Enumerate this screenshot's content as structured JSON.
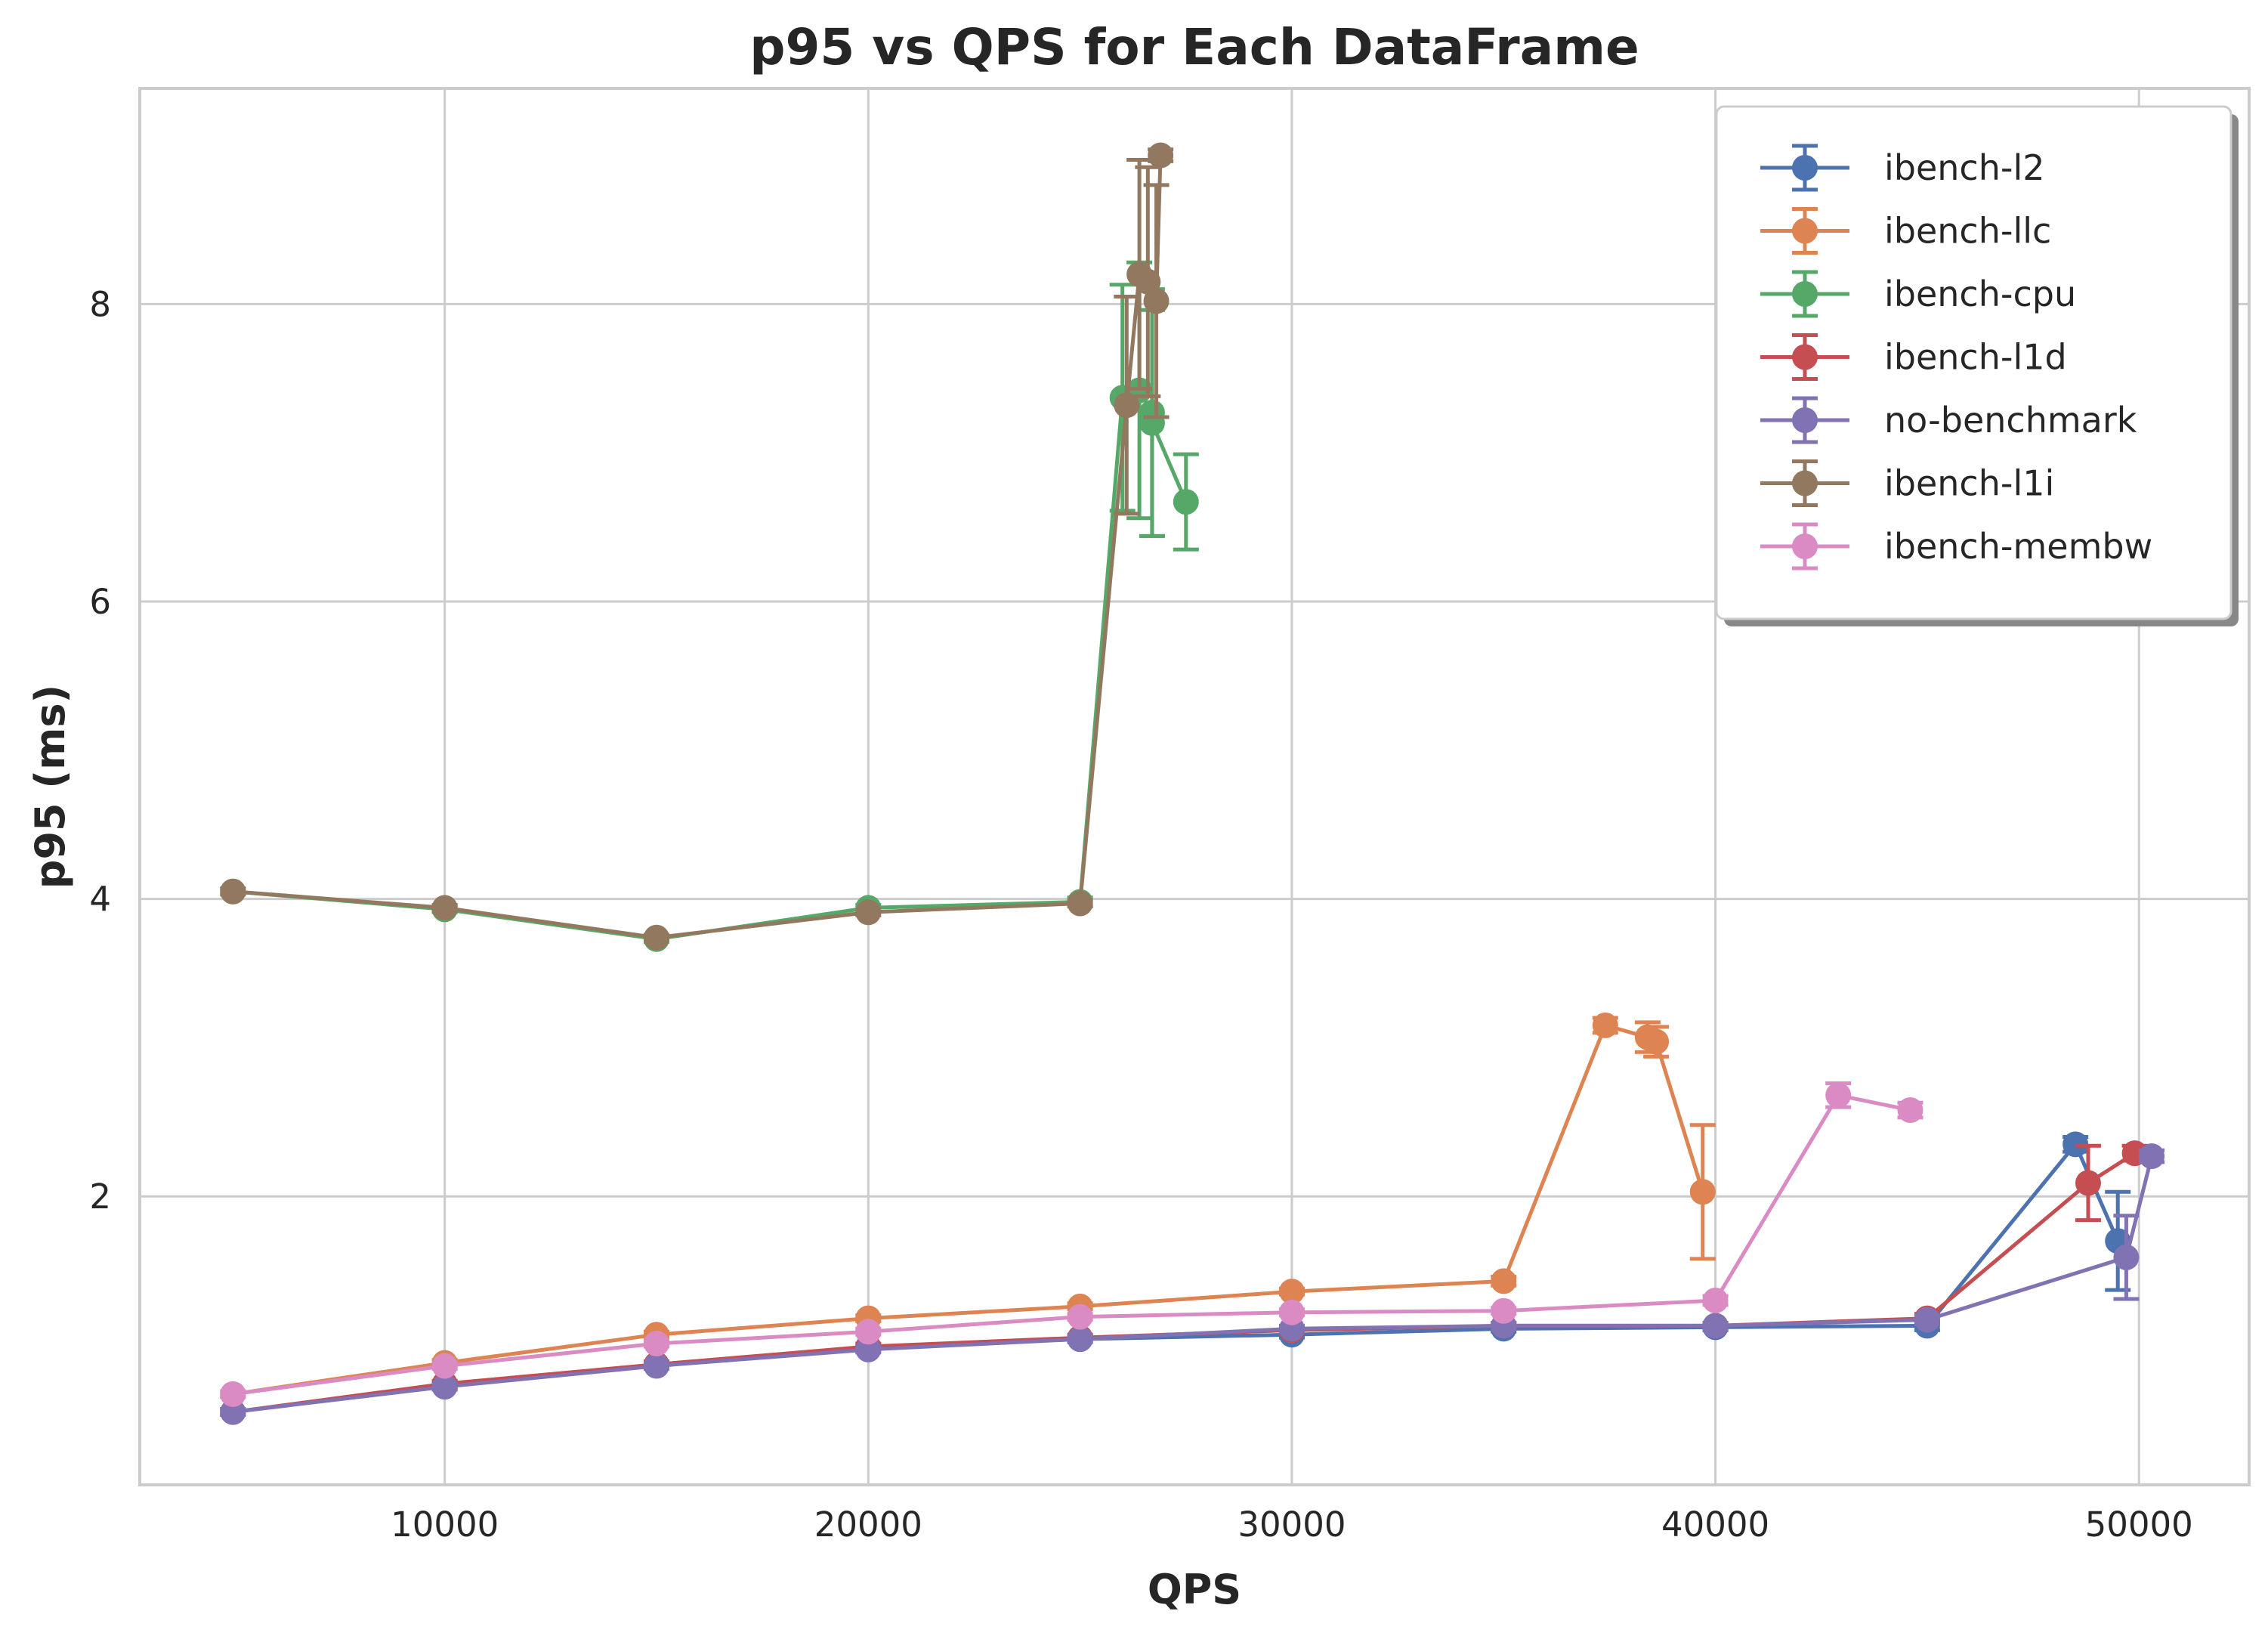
{
  "chart_data": {
    "type": "line",
    "title": "p95 vs QPS for Each DataFrame",
    "xlabel": "QPS",
    "ylabel": "p95 (ms)",
    "xlim": [
      2800,
      52600
    ],
    "ylim": [
      0.06,
      9.45
    ],
    "xticks": [
      10000,
      20000,
      30000,
      40000,
      50000
    ],
    "yticks": [
      2,
      4,
      6,
      8
    ],
    "grid": true,
    "legend_position": "upper right",
    "series": [
      {
        "name": "ibench-l2",
        "color": "#4c72b0",
        "points": [
          {
            "x": 5000,
            "y": 0.55,
            "err": 0.02
          },
          {
            "x": 10000,
            "y": 0.73,
            "err": 0.02
          },
          {
            "x": 15000,
            "y": 0.87,
            "err": 0.02
          },
          {
            "x": 20000,
            "y": 0.98,
            "err": 0.02
          },
          {
            "x": 25000,
            "y": 1.04,
            "err": 0.02
          },
          {
            "x": 30000,
            "y": 1.07,
            "err": 0.02
          },
          {
            "x": 35000,
            "y": 1.11,
            "err": 0.02
          },
          {
            "x": 40000,
            "y": 1.12,
            "err": 0.02
          },
          {
            "x": 45000,
            "y": 1.13,
            "err": 0.03
          },
          {
            "x": 48500,
            "y": 2.35,
            "err": 0.05
          },
          {
            "x": 49500,
            "y": 1.7,
            "err": 0.33
          }
        ]
      },
      {
        "name": "ibench-llc",
        "color": "#dd8452",
        "points": [
          {
            "x": 5000,
            "y": 0.67,
            "err": 0.02
          },
          {
            "x": 10000,
            "y": 0.88,
            "err": 0.02
          },
          {
            "x": 15000,
            "y": 1.07,
            "err": 0.02
          },
          {
            "x": 20000,
            "y": 1.18,
            "err": 0.02
          },
          {
            "x": 25000,
            "y": 1.26,
            "err": 0.02
          },
          {
            "x": 30000,
            "y": 1.36,
            "err": 0.02
          },
          {
            "x": 35000,
            "y": 1.43,
            "err": 0.03
          },
          {
            "x": 37400,
            "y": 3.15,
            "err": 0.05
          },
          {
            "x": 38400,
            "y": 3.07,
            "err": 0.1
          },
          {
            "x": 38600,
            "y": 3.04,
            "err": 0.1
          },
          {
            "x": 39700,
            "y": 2.03,
            "err": 0.45
          }
        ]
      },
      {
        "name": "ibench-cpu",
        "color": "#55a868",
        "points": [
          {
            "x": 5000,
            "y": 4.05,
            "err": 0.02
          },
          {
            "x": 10000,
            "y": 3.93,
            "err": 0.02
          },
          {
            "x": 15000,
            "y": 3.73,
            "err": 0.02
          },
          {
            "x": 20000,
            "y": 3.94,
            "err": 0.02
          },
          {
            "x": 25000,
            "y": 3.98,
            "err": 0.03
          },
          {
            "x": 26000,
            "y": 7.37,
            "err": 0.76
          },
          {
            "x": 26400,
            "y": 7.42,
            "err": 0.86
          },
          {
            "x": 26700,
            "y": 7.27,
            "err": 0.83
          },
          {
            "x": 26700,
            "y": 7.2,
            "err": 0.76
          },
          {
            "x": 27500,
            "y": 6.67,
            "err": 0.32
          }
        ]
      },
      {
        "name": "ibench-l1d",
        "color": "#c44e52",
        "points": [
          {
            "x": 5000,
            "y": 0.55,
            "err": 0.02
          },
          {
            "x": 10000,
            "y": 0.74,
            "err": 0.02
          },
          {
            "x": 15000,
            "y": 0.87,
            "err": 0.02
          },
          {
            "x": 20000,
            "y": 0.99,
            "err": 0.02
          },
          {
            "x": 25000,
            "y": 1.05,
            "err": 0.02
          },
          {
            "x": 30000,
            "y": 1.1,
            "err": 0.02
          },
          {
            "x": 35000,
            "y": 1.13,
            "err": 0.02
          },
          {
            "x": 40000,
            "y": 1.13,
            "err": 0.02
          },
          {
            "x": 45000,
            "y": 1.18,
            "err": 0.03
          },
          {
            "x": 48800,
            "y": 2.09,
            "err": 0.25
          },
          {
            "x": 49900,
            "y": 2.29,
            "err": 0.05
          }
        ]
      },
      {
        "name": "no-benchmark",
        "color": "#8172b3",
        "points": [
          {
            "x": 5000,
            "y": 0.55,
            "err": 0.02
          },
          {
            "x": 10000,
            "y": 0.72,
            "err": 0.02
          },
          {
            "x": 15000,
            "y": 0.86,
            "err": 0.02
          },
          {
            "x": 20000,
            "y": 0.97,
            "err": 0.02
          },
          {
            "x": 25000,
            "y": 1.04,
            "err": 0.02
          },
          {
            "x": 30000,
            "y": 1.11,
            "err": 0.02
          },
          {
            "x": 35000,
            "y": 1.13,
            "err": 0.02
          },
          {
            "x": 40000,
            "y": 1.13,
            "err": 0.02
          },
          {
            "x": 45000,
            "y": 1.17,
            "err": 0.03
          },
          {
            "x": 49700,
            "y": 1.59,
            "err": 0.28
          },
          {
            "x": 50300,
            "y": 2.27,
            "err": 0.04
          }
        ]
      },
      {
        "name": "ibench-l1i",
        "color": "#937860",
        "points": [
          {
            "x": 5000,
            "y": 4.05,
            "err": 0.02
          },
          {
            "x": 10000,
            "y": 3.94,
            "err": 0.02
          },
          {
            "x": 15000,
            "y": 3.74,
            "err": 0.02
          },
          {
            "x": 20000,
            "y": 3.91,
            "err": 0.02
          },
          {
            "x": 25000,
            "y": 3.97,
            "err": 0.02
          },
          {
            "x": 26100,
            "y": 7.32,
            "err": 0.73
          },
          {
            "x": 26400,
            "y": 8.2,
            "err": 0.77
          },
          {
            "x": 26600,
            "y": 8.15,
            "err": 0.77
          },
          {
            "x": 26800,
            "y": 8.02,
            "err": 0.78
          },
          {
            "x": 26900,
            "y": 9.0,
            "err": 0.04
          }
        ]
      },
      {
        "name": "ibench-membw",
        "color": "#da8bc3",
        "points": [
          {
            "x": 5000,
            "y": 0.67,
            "err": 0.02
          },
          {
            "x": 10000,
            "y": 0.86,
            "err": 0.02
          },
          {
            "x": 15000,
            "y": 1.01,
            "err": 0.02
          },
          {
            "x": 20000,
            "y": 1.09,
            "err": 0.02
          },
          {
            "x": 25000,
            "y": 1.19,
            "err": 0.02
          },
          {
            "x": 30000,
            "y": 1.22,
            "err": 0.02
          },
          {
            "x": 35000,
            "y": 1.23,
            "err": 0.02
          },
          {
            "x": 40000,
            "y": 1.3,
            "err": 0.03
          },
          {
            "x": 42900,
            "y": 2.68,
            "err": 0.08
          },
          {
            "x": 44600,
            "y": 2.58,
            "err": 0.05
          }
        ]
      }
    ]
  }
}
